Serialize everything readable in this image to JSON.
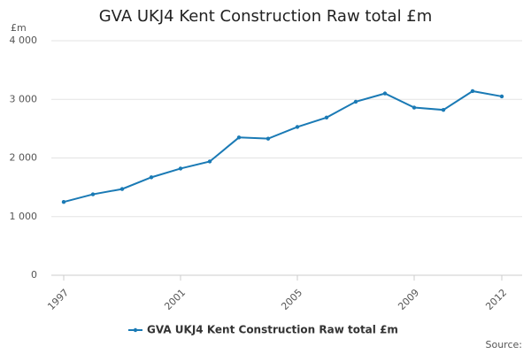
{
  "chart_data": {
    "type": "line",
    "title": "GVA UKJ4 Kent Construction Raw total £m",
    "y_label": "£m",
    "source": "Source:",
    "x": [
      1997,
      1998,
      1999,
      2000,
      2001,
      2002,
      2003,
      2004,
      2005,
      2006,
      2007,
      2008,
      2009,
      2010,
      2011,
      2012
    ],
    "series": [
      {
        "name": "GVA UKJ4 Kent Construction Raw total £m",
        "color": "#1a7ab5",
        "values": [
          1250,
          1380,
          1470,
          1670,
          1820,
          1940,
          2350,
          2330,
          2530,
          2690,
          2960,
          3100,
          2860,
          2820,
          3140,
          3050
        ]
      }
    ],
    "xlim": [
      1997,
      2012
    ],
    "xticks": [
      1997,
      2001,
      2005,
      2009,
      2012
    ],
    "ylim": [
      0,
      4000
    ],
    "yticks": [
      0,
      {
        "value": 1000,
        "label": "1 000"
      },
      {
        "value": 2000,
        "label": "2 000"
      },
      {
        "value": 3000,
        "label": "3 000"
      },
      {
        "value": 4000,
        "label": "4 000"
      }
    ],
    "grid": true
  }
}
